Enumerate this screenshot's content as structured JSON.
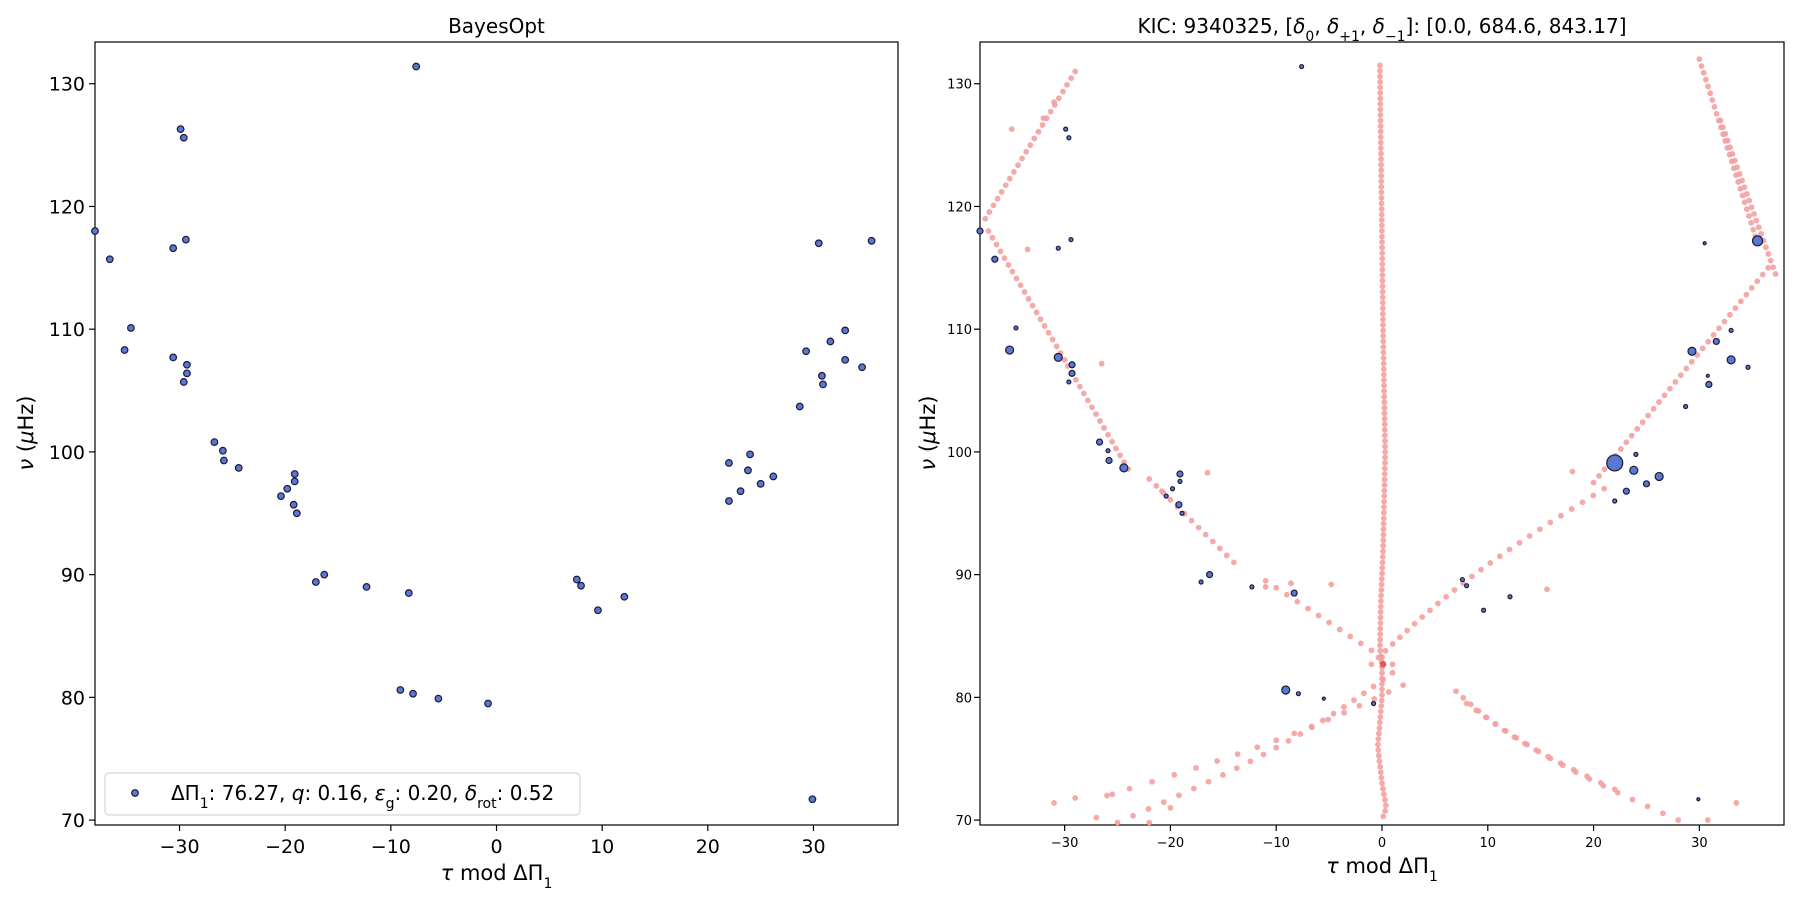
{
  "chart_data": [
    {
      "type": "scatter",
      "title": "BayesOpt",
      "xlabel": "τ mod ΔΠ₁",
      "ylabel": "ν (μHz)",
      "xlim": [
        -38,
        38
      ],
      "ylim": [
        69.6,
        133.4
      ],
      "xticks": [
        -30,
        -20,
        -10,
        0,
        10,
        20,
        30
      ],
      "xtick_labels": [
        "−30",
        "−20",
        "−10",
        "0",
        "10",
        "20",
        "30"
      ],
      "yticks": [
        70,
        80,
        90,
        100,
        110,
        120,
        130
      ],
      "ytick_labels": [
        "70",
        "80",
        "90",
        "100",
        "110",
        "120",
        "130"
      ],
      "legend": {
        "position": "lower-left",
        "label": "ΔΠ₁: 76.27, q: 0.16, εg: 0.20, δrot: 0.52",
        "parts": {
          "dp": "ΔΠ",
          "dp_sub": "1",
          "dp_val": ": 76.27, ",
          "q": "q",
          "q_val": ": 0.16, ",
          "eps": "ε",
          "eps_sub": "g",
          "eps_val": ": 0.20, ",
          "delta": "δ",
          "delta_sub": "rot",
          "delta_val": ": 0.52"
        }
      },
      "series": [
        {
          "color": "#5b77d0",
          "edge": "#1a1a3a",
          "points": [
            [
              -38,
              118.0
            ],
            [
              -36.6,
              115.7
            ],
            [
              -35.2,
              108.3
            ],
            [
              -34.6,
              110.1
            ],
            [
              -30.6,
              116.6
            ],
            [
              -30.6,
              107.7
            ],
            [
              -29.9,
              126.3
            ],
            [
              -29.6,
              125.6
            ],
            [
              -29.4,
              117.3
            ],
            [
              -29.3,
              107.1
            ],
            [
              -29.3,
              106.4
            ],
            [
              -29.6,
              105.7
            ],
            [
              -26.7,
              100.8
            ],
            [
              -25.9,
              100.1
            ],
            [
              -25.8,
              99.3
            ],
            [
              -24.4,
              98.7
            ],
            [
              -20.4,
              96.4
            ],
            [
              -19.8,
              97.0
            ],
            [
              -19.1,
              98.2
            ],
            [
              -19.1,
              97.6
            ],
            [
              -19.2,
              95.7
            ],
            [
              -18.9,
              95.0
            ],
            [
              -17.1,
              89.4
            ],
            [
              -16.3,
              90.0
            ],
            [
              -12.3,
              89.0
            ],
            [
              -8.3,
              88.5
            ],
            [
              -7.6,
              131.4
            ],
            [
              -9.1,
              80.6
            ],
            [
              -7.9,
              80.3
            ],
            [
              -5.5,
              79.9
            ],
            [
              -0.8,
              79.5
            ],
            [
              7.6,
              89.6
            ],
            [
              8.0,
              89.1
            ],
            [
              9.6,
              87.1
            ],
            [
              12.1,
              88.2
            ],
            [
              22.0,
              99.1
            ],
            [
              22.0,
              96.0
            ],
            [
              23.1,
              96.8
            ],
            [
              23.8,
              98.5
            ],
            [
              24.0,
              99.8
            ],
            [
              25.0,
              97.4
            ],
            [
              26.2,
              98.0
            ],
            [
              28.7,
              103.7
            ],
            [
              29.3,
              108.2
            ],
            [
              29.9,
              71.7
            ],
            [
              30.5,
              117.0
            ],
            [
              30.8,
              106.2
            ],
            [
              30.9,
              105.5
            ],
            [
              31.6,
              109.0
            ],
            [
              33.0,
              109.9
            ],
            [
              33.0,
              107.5
            ],
            [
              34.6,
              106.9
            ],
            [
              35.5,
              117.2
            ]
          ]
        }
      ]
    },
    {
      "type": "scatter",
      "title": "KIC: 9340325, [δ0, δ+1, δ−1]: [0.0, 684.6, 843.17]",
      "title_parts": {
        "prefix": "KIC: 9340325, [",
        "d": "δ",
        "s0": "0",
        "sep1": ", ",
        "s1": "+1",
        "sep2": ", ",
        "s2": "−1",
        "suffix": "]: [0.0, 684.6, 843.17]"
      },
      "xlabel": "τ mod ΔΠ₁",
      "ylabel": "ν (μHz)",
      "xlim": [
        -38,
        38
      ],
      "ylim": [
        69.6,
        133.4
      ],
      "xticks": [
        -30,
        -20,
        -10,
        0,
        10,
        20,
        30
      ],
      "xtick_labels": [
        "−30",
        "−20",
        "−10",
        "0",
        "10",
        "20",
        "30"
      ],
      "yticks": [
        70,
        80,
        90,
        100,
        110,
        120,
        130
      ],
      "ytick_labels": [
        "70",
        "80",
        "90",
        "100",
        "110",
        "120",
        "130"
      ],
      "series": [
        {
          "kind": "model-m0",
          "color": "#f4a0a0",
          "x0_curve": [
            [
              131.5,
              -0.2
            ],
            [
              110,
              0.1
            ],
            [
              100,
              0.3
            ],
            [
              92,
              0.1
            ],
            [
              88,
              -0.1
            ],
            [
              84,
              -0.2
            ],
            [
              82.6,
              0.0
            ],
            [
              80,
              0.0
            ],
            [
              76,
              -0.4
            ],
            [
              73,
              0.0
            ],
            [
              71,
              0.4
            ],
            [
              70,
              0.0
            ]
          ],
          "f_step": 0.45
        },
        {
          "kind": "model-m1",
          "color": "#f4a0a0",
          "traces": [
            {
              "x0": -29.0,
              "f0": 131.0,
              "x1": -37.5,
              "f1": 119.0,
              "a": 0.0
            },
            {
              "x0": -37.2,
              "f0": 118.0,
              "x1": -30.0,
              "f1": 107.5,
              "a": 0.0
            },
            {
              "x0": -29.7,
              "f0": 107.0,
              "x1": -24.0,
              "f1": 98.6,
              "a": 0.0
            },
            {
              "x0": -22.0,
              "f0": 97.8,
              "x1": -14.0,
              "f1": 91.0,
              "a": 0.0
            },
            {
              "x0": -11.0,
              "f0": 89.5,
              "x1": 1.0,
              "f1": 82.7,
              "a": 0.0
            },
            {
              "x0": -1.0,
              "f0": 82.7,
              "x1": 21.0,
              "f1": 97.0,
              "a": -1.5
            },
            {
              "x0": 20.0,
              "f0": 97.5,
              "x1": 36.5,
              "f1": 115.0,
              "a": 0.0
            },
            {
              "x0": 35.5,
              "f0": 117.0,
              "x1": 30.0,
              "f1": 132.0,
              "a": 0.0
            },
            {
              "x0": 37.2,
              "f0": 114.5,
              "x1": 32.0,
              "f1": 127.0,
              "a": 0.0
            },
            {
              "x0": 1.0,
              "f0": 82.0,
              "x1": -25.0,
              "f1": 69.8,
              "a": 2.0
            },
            {
              "x0": 2.0,
              "f0": 81.0,
              "x1": -26.0,
              "f1": 72.0,
              "a": 2.0
            },
            {
              "x0": 28.0,
              "f0": 70.0,
              "x1": 8.0,
              "f1": 79.5,
              "a": -1.5
            },
            {
              "x0": 22.0,
              "f0": 72.5,
              "x1": 7.0,
              "f1": 80.5,
              "a": -1.5
            }
          ],
          "extras": [
            [
              -26.5,
              107.2
            ],
            [
              -20.8,
              96.8
            ],
            [
              -16.5,
              98.3
            ],
            [
              -11.0,
              89.0
            ],
            [
              -8.6,
              89.3
            ],
            [
              -4.8,
              89.2
            ],
            [
              18.0,
              98.4
            ],
            [
              15.6,
              88.8
            ],
            [
              -33.5,
              116.5
            ],
            [
              -35.0,
              126.3
            ],
            [
              -32.0,
              127.2
            ],
            [
              -31.0,
              128.5
            ],
            [
              30.8,
              70.0
            ],
            [
              33.5,
              71.4
            ],
            [
              -31.0,
              71.4
            ],
            [
              -29.0,
              71.8
            ],
            [
              -25.5,
              72.1
            ],
            [
              -27.0,
              70.2
            ],
            [
              -22.0,
              69.8
            ],
            [
              -20.0,
              71.0
            ]
          ]
        },
        {
          "kind": "observed",
          "color": "#5b77d0",
          "edge": "#1a1a3a",
          "points": [
            [
              -38,
              118.0,
              3
            ],
            [
              -36.6,
              115.7,
              3
            ],
            [
              -35.2,
              108.3,
              4
            ],
            [
              -34.6,
              110.1,
              2
            ],
            [
              -30.6,
              116.6,
              2
            ],
            [
              -30.6,
              107.7,
              4
            ],
            [
              -29.9,
              126.3,
              2
            ],
            [
              -29.6,
              125.6,
              2
            ],
            [
              -29.4,
              117.3,
              2
            ],
            [
              -29.3,
              107.1,
              3
            ],
            [
              -29.3,
              106.4,
              3
            ],
            [
              -29.6,
              105.7,
              2
            ],
            [
              -26.7,
              100.8,
              3
            ],
            [
              -25.9,
              100.1,
              2
            ],
            [
              -25.8,
              99.3,
              3
            ],
            [
              -24.4,
              98.7,
              4
            ],
            [
              -20.4,
              96.4,
              2
            ],
            [
              -19.8,
              97.0,
              2
            ],
            [
              -19.1,
              98.2,
              3
            ],
            [
              -19.1,
              97.6,
              2
            ],
            [
              -19.2,
              95.7,
              3
            ],
            [
              -18.9,
              95.0,
              2
            ],
            [
              -17.1,
              89.4,
              2
            ],
            [
              -16.3,
              90.0,
              3
            ],
            [
              -12.3,
              89.0,
              2
            ],
            [
              -8.3,
              88.5,
              3
            ],
            [
              -7.6,
              131.4,
              2
            ],
            [
              -9.1,
              80.6,
              4
            ],
            [
              -7.9,
              80.3,
              2
            ],
            [
              -5.5,
              79.9,
              1.5
            ],
            [
              -0.8,
              79.5,
              2
            ],
            [
              7.6,
              89.6,
              2
            ],
            [
              8.0,
              89.1,
              2
            ],
            [
              9.6,
              87.1,
              2
            ],
            [
              12.1,
              88.2,
              2
            ],
            [
              22.0,
              99.1,
              8
            ],
            [
              22.0,
              96.0,
              2
            ],
            [
              23.1,
              96.8,
              3
            ],
            [
              23.8,
              98.5,
              4
            ],
            [
              24.0,
              99.8,
              2
            ],
            [
              25.0,
              97.4,
              3
            ],
            [
              26.2,
              98.0,
              4
            ],
            [
              28.7,
              103.7,
              2
            ],
            [
              29.3,
              108.2,
              4
            ],
            [
              29.9,
              71.7,
              1.5
            ],
            [
              30.5,
              117.0,
              1.5
            ],
            [
              30.8,
              106.2,
              1.5
            ],
            [
              30.9,
              105.5,
              3
            ],
            [
              31.6,
              109.0,
              3
            ],
            [
              33.0,
              109.9,
              2
            ],
            [
              33.0,
              107.5,
              4
            ],
            [
              34.6,
              106.9,
              2
            ],
            [
              35.5,
              117.2,
              5
            ]
          ]
        }
      ]
    }
  ]
}
